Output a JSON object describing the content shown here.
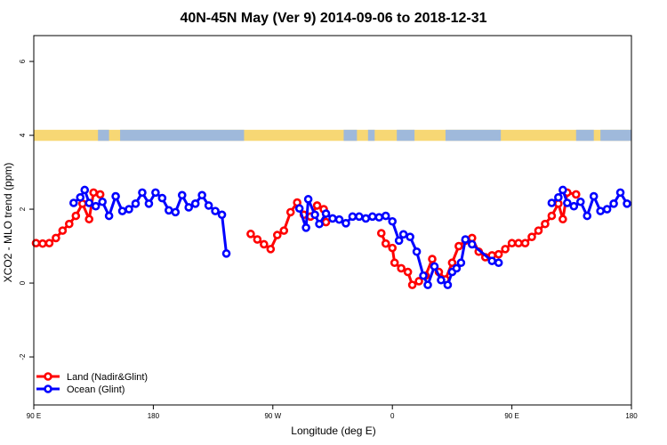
{
  "chart_data": {
    "type": "line",
    "title": "40N-45N May (Ver 9)   2014-09-06 to 2018-12-31",
    "xlabel": "Longitude (deg E)",
    "ylabel": "XCO2 - MLO trend (ppm)",
    "xlim": [
      -90,
      180
    ],
    "ylim": [
      -3.3,
      6.7
    ],
    "x_ticks": [
      {
        "value": -90,
        "label": "90 E"
      },
      {
        "value": -36,
        "label": "180"
      },
      {
        "value": 18,
        "label": "90 W"
      },
      {
        "value": 72,
        "label": "0"
      },
      {
        "value": 126,
        "label": "90 E"
      },
      {
        "value": 180,
        "label": "180"
      }
    ],
    "y_ticks": [
      {
        "value": -2,
        "label": "-2"
      },
      {
        "value": 0,
        "label": "0"
      },
      {
        "value": 2,
        "label": "2"
      },
      {
        "value": 4,
        "label": "4"
      },
      {
        "value": 6,
        "label": "6"
      }
    ],
    "grid": false,
    "legend_position": "bottom-left",
    "landmask_strip": {
      "y_range": [
        3.85,
        4.15
      ],
      "land_color": "#f7d774",
      "ocean_color": "#9fb9db",
      "ocean_intervals": [
        [
          -61,
          -56
        ],
        [
          -51,
          5
        ],
        [
          50,
          56
        ],
        [
          61,
          64
        ],
        [
          74,
          82
        ],
        [
          96,
          121
        ],
        [
          155,
          163
        ],
        [
          166,
          180
        ]
      ]
    },
    "series": [
      {
        "name": "Land (Nadir&Glint)",
        "color": "#ff0000",
        "points": [
          [
            -89,
            1.08
          ],
          [
            -86,
            1.07
          ],
          [
            -83,
            1.08
          ],
          [
            -80,
            1.22
          ],
          [
            -77,
            1.42
          ],
          [
            -74,
            1.6
          ],
          [
            -71,
            1.82
          ],
          [
            -68,
            2.15
          ],
          [
            -65,
            1.73
          ],
          [
            -63,
            2.45
          ],
          [
            -60,
            2.4
          ],
          [
            8,
            1.33
          ],
          [
            11,
            1.18
          ],
          [
            14,
            1.05
          ],
          [
            17,
            0.92
          ],
          [
            20,
            1.3
          ],
          [
            23,
            1.42
          ],
          [
            26,
            1.92
          ],
          [
            29,
            2.18
          ],
          [
            32,
            1.85
          ],
          [
            35,
            1.8
          ],
          [
            38,
            2.1
          ],
          [
            41,
            2.0
          ],
          [
            42,
            1.65
          ],
          [
            67,
            1.35
          ],
          [
            69,
            1.07
          ],
          [
            72,
            0.95
          ],
          [
            73,
            0.55
          ],
          [
            76,
            0.4
          ],
          [
            79,
            0.3
          ],
          [
            81,
            -0.05
          ],
          [
            84,
            0.05
          ],
          [
            87,
            0.2
          ],
          [
            90,
            0.65
          ],
          [
            93,
            0.3
          ],
          [
            96,
            0.1
          ],
          [
            99,
            0.55
          ],
          [
            102,
            1.0
          ],
          [
            105,
            1.15
          ],
          [
            108,
            1.22
          ],
          [
            111,
            0.85
          ],
          [
            114,
            0.7
          ],
          [
            117,
            0.75
          ],
          [
            120,
            0.78
          ],
          [
            123,
            0.92
          ],
          [
            126,
            1.08
          ],
          [
            129,
            1.08
          ],
          [
            132,
            1.08
          ],
          [
            135,
            1.25
          ],
          [
            138,
            1.42
          ],
          [
            141,
            1.6
          ],
          [
            144,
            1.82
          ],
          [
            147,
            2.15
          ],
          [
            149,
            1.73
          ],
          [
            151,
            2.45
          ],
          [
            155,
            2.4
          ]
        ]
      },
      {
        "name": "Ocean (Glint)",
        "color": "#0000ff",
        "points": [
          [
            -72,
            2.17
          ],
          [
            -69,
            2.32
          ],
          [
            -67,
            2.52
          ],
          [
            -65,
            2.17
          ],
          [
            -62,
            2.08
          ],
          [
            -59,
            2.2
          ],
          [
            -56,
            1.82
          ],
          [
            -53,
            2.35
          ],
          [
            -50,
            1.95
          ],
          [
            -47,
            2.0
          ],
          [
            -44,
            2.15
          ],
          [
            -41,
            2.45
          ],
          [
            -38,
            2.15
          ],
          [
            -35,
            2.45
          ],
          [
            -32,
            2.3
          ],
          [
            -29,
            1.97
          ],
          [
            -26,
            1.92
          ],
          [
            -23,
            2.38
          ],
          [
            -20,
            2.05
          ],
          [
            -17,
            2.15
          ],
          [
            -14,
            2.38
          ],
          [
            -11,
            2.1
          ],
          [
            -8,
            1.95
          ],
          [
            -5,
            1.85
          ],
          [
            -3,
            0.8
          ],
          [
            30,
            2.02
          ],
          [
            33,
            1.5
          ],
          [
            34,
            2.27
          ],
          [
            37,
            1.85
          ],
          [
            39,
            1.6
          ],
          [
            42,
            1.88
          ],
          [
            45,
            1.75
          ],
          [
            48,
            1.72
          ],
          [
            51,
            1.62
          ],
          [
            54,
            1.8
          ],
          [
            57,
            1.8
          ],
          [
            60,
            1.75
          ],
          [
            63,
            1.8
          ],
          [
            66,
            1.78
          ],
          [
            69,
            1.82
          ],
          [
            72,
            1.67
          ],
          [
            75,
            1.15
          ],
          [
            77,
            1.32
          ],
          [
            80,
            1.25
          ],
          [
            83,
            0.85
          ],
          [
            86,
            0.2
          ],
          [
            88,
            -0.05
          ],
          [
            91,
            0.45
          ],
          [
            94,
            0.08
          ],
          [
            97,
            -0.05
          ],
          [
            99,
            0.3
          ],
          [
            101,
            0.4
          ],
          [
            103,
            0.55
          ],
          [
            105,
            1.18
          ],
          [
            108,
            1.05
          ],
          [
            117,
            0.6
          ],
          [
            120,
            0.55
          ],
          [
            144,
            2.17
          ],
          [
            147,
            2.32
          ],
          [
            149,
            2.52
          ],
          [
            151,
            2.17
          ],
          [
            154,
            2.08
          ],
          [
            157,
            2.2
          ],
          [
            160,
            1.82
          ],
          [
            163,
            2.35
          ],
          [
            166,
            1.95
          ],
          [
            169,
            2.0
          ],
          [
            172,
            2.15
          ],
          [
            175,
            2.45
          ],
          [
            178,
            2.15
          ]
        ]
      }
    ]
  }
}
